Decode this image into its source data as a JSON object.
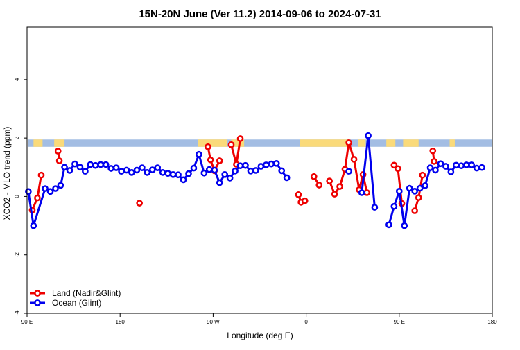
{
  "chart_data": {
    "type": "line",
    "title": "15N-20N June (Ver 11.2)   2014-09-06 to 2024-07-31",
    "xlabel": "Longitude (deg E)",
    "ylabel": "XCO2 - MLO trend (ppm)",
    "xlim": [
      90,
      450
    ],
    "ylim": [
      -4,
      5.8
    ],
    "x_ticks": [
      {
        "value": 90,
        "label": "90 E"
      },
      {
        "value": 162,
        "label": "180"
      },
      {
        "value": 234,
        "label": "90 W"
      },
      {
        "value": 306,
        "label": "0"
      },
      {
        "value": 378,
        "label": "90 E"
      },
      {
        "value": 450,
        "label": "180"
      }
    ],
    "y_ticks": [
      {
        "value": -4,
        "label": "-4"
      },
      {
        "value": -2,
        "label": "-2"
      },
      {
        "value": 0,
        "label": "0"
      },
      {
        "value": 2,
        "label": "2"
      },
      {
        "value": 4,
        "label": "4"
      }
    ],
    "grid": false,
    "legend_position": "bottom-left",
    "land_band": {
      "y_range": [
        1.7,
        1.95
      ],
      "ocean_color": "#a3bde3",
      "land_color": "#fada7a",
      "land_spans": [
        [
          95,
          102
        ],
        [
          111,
          119
        ],
        [
          222,
          245
        ],
        [
          248,
          258
        ],
        [
          301,
          340
        ],
        [
          346,
          352
        ],
        [
          368,
          375
        ],
        [
          381,
          393
        ],
        [
          417,
          421
        ]
      ]
    },
    "series": [
      {
        "name": "Land (Nadir&Glint)",
        "color": "#ee0000",
        "segments": [
          [
            [
              94,
              -0.47
            ],
            [
              98,
              -0.05
            ],
            [
              101,
              0.73
            ]
          ],
          [
            [
              114,
              1.55
            ],
            [
              115,
              1.22
            ]
          ],
          [
            [
              177,
              -0.23
            ]
          ],
          [
            [
              230,
              1.7
            ],
            [
              232,
              1.25
            ],
            [
              235,
              0.88
            ],
            [
              239,
              1.22
            ]
          ],
          [
            [
              248,
              1.77
            ],
            [
              252,
              1.1
            ],
            [
              255,
              1.98
            ]
          ],
          [
            [
              300,
              0.06
            ],
            [
              302,
              -0.2
            ],
            [
              305,
              -0.15
            ]
          ],
          [
            [
              312,
              0.68
            ],
            [
              316,
              0.39
            ]
          ],
          [
            [
              324,
              0.53
            ],
            [
              328,
              0.08
            ],
            [
              332,
              0.34
            ],
            [
              336,
              0.93
            ],
            [
              339,
              1.84
            ],
            [
              343,
              1.27
            ],
            [
              347,
              0.23
            ],
            [
              350,
              0.75
            ],
            [
              353,
              0.13
            ]
          ],
          [
            [
              374,
              1.07
            ],
            [
              377,
              0.95
            ],
            [
              380,
              -0.24
            ]
          ],
          [
            [
              390,
              -0.49
            ],
            [
              393,
              -0.04
            ],
            [
              396,
              0.73
            ]
          ],
          [
            [
              404,
              1.56
            ],
            [
              405,
              1.2
            ]
          ]
        ]
      },
      {
        "name": "Ocean (Glint)",
        "color": "#0000ee",
        "segments": [
          [
            [
              91,
              0.17
            ],
            [
              95,
              -1.0
            ],
            [
              104,
              0.27
            ],
            [
              108,
              0.17
            ],
            [
              112,
              0.27
            ],
            [
              116,
              0.38
            ],
            [
              119,
              1.0
            ],
            [
              123,
              0.89
            ],
            [
              127,
              1.11
            ],
            [
              131,
              1.0
            ],
            [
              135,
              0.86
            ],
            [
              139,
              1.09
            ],
            [
              143,
              1.06
            ],
            [
              147,
              1.09
            ],
            [
              151,
              1.09
            ],
            [
              155,
              0.96
            ],
            [
              159,
              0.98
            ],
            [
              163,
              0.86
            ],
            [
              167,
              0.9
            ],
            [
              171,
              0.82
            ],
            [
              175,
              0.9
            ],
            [
              179,
              0.98
            ],
            [
              183,
              0.82
            ],
            [
              187,
              0.91
            ],
            [
              191,
              0.98
            ],
            [
              195,
              0.82
            ],
            [
              199,
              0.79
            ],
            [
              203,
              0.75
            ],
            [
              207,
              0.74
            ],
            [
              211,
              0.57
            ],
            [
              215,
              0.78
            ],
            [
              219,
              0.97
            ],
            [
              223,
              1.44
            ],
            [
              227,
              0.8
            ],
            [
              231,
              0.92
            ],
            [
              235,
              0.9
            ],
            [
              239,
              0.47
            ],
            [
              243,
              0.75
            ],
            [
              247,
              0.63
            ],
            [
              251,
              0.87
            ],
            [
              255,
              1.05
            ],
            [
              259,
              1.06
            ],
            [
              263,
              0.87
            ],
            [
              267,
              0.89
            ],
            [
              271,
              1.03
            ],
            [
              275,
              1.08
            ],
            [
              279,
              1.11
            ],
            [
              283,
              1.13
            ],
            [
              287,
              0.88
            ],
            [
              291,
              0.64
            ]
          ],
          [
            [
              339,
              0.86
            ]
          ],
          [
            [
              349,
              0.13
            ],
            [
              354,
              2.08
            ],
            [
              359,
              -0.37
            ]
          ],
          [
            [
              370,
              -0.97
            ],
            [
              374,
              -0.34
            ],
            [
              378,
              0.18
            ],
            [
              382,
              -1.0
            ],
            [
              386,
              0.28
            ],
            [
              390,
              0.18
            ],
            [
              394,
              0.28
            ],
            [
              398,
              0.37
            ],
            [
              402,
              0.98
            ],
            [
              406,
              0.9
            ],
            [
              410,
              1.12
            ],
            [
              414,
              1.03
            ],
            [
              418,
              0.84
            ],
            [
              422,
              1.07
            ],
            [
              426,
              1.05
            ],
            [
              430,
              1.08
            ],
            [
              434,
              1.08
            ],
            [
              438,
              0.97
            ],
            [
              442,
              0.99
            ]
          ]
        ]
      }
    ]
  }
}
